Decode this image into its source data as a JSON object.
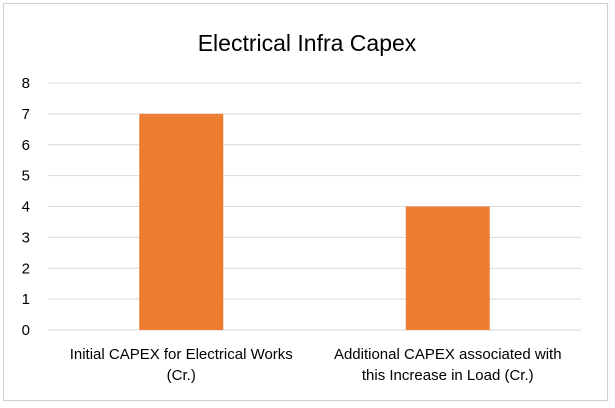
{
  "chart_data": {
    "type": "bar",
    "title": "Electrical Infra Capex",
    "categories": [
      [
        "Initial CAPEX for Electrical Works",
        "(Cr.)"
      ],
      [
        "Additional CAPEX associated with",
        "this Increase in Load (Cr.)"
      ]
    ],
    "values": [
      7,
      4
    ],
    "ylim": [
      0,
      8
    ],
    "yticks": [
      0,
      1,
      2,
      3,
      4,
      5,
      6,
      7,
      8
    ],
    "grid": true,
    "legend": "none",
    "bar_color": "#ED7D31",
    "grid_color": "#d9d9d9",
    "xlabel": "",
    "ylabel": ""
  }
}
